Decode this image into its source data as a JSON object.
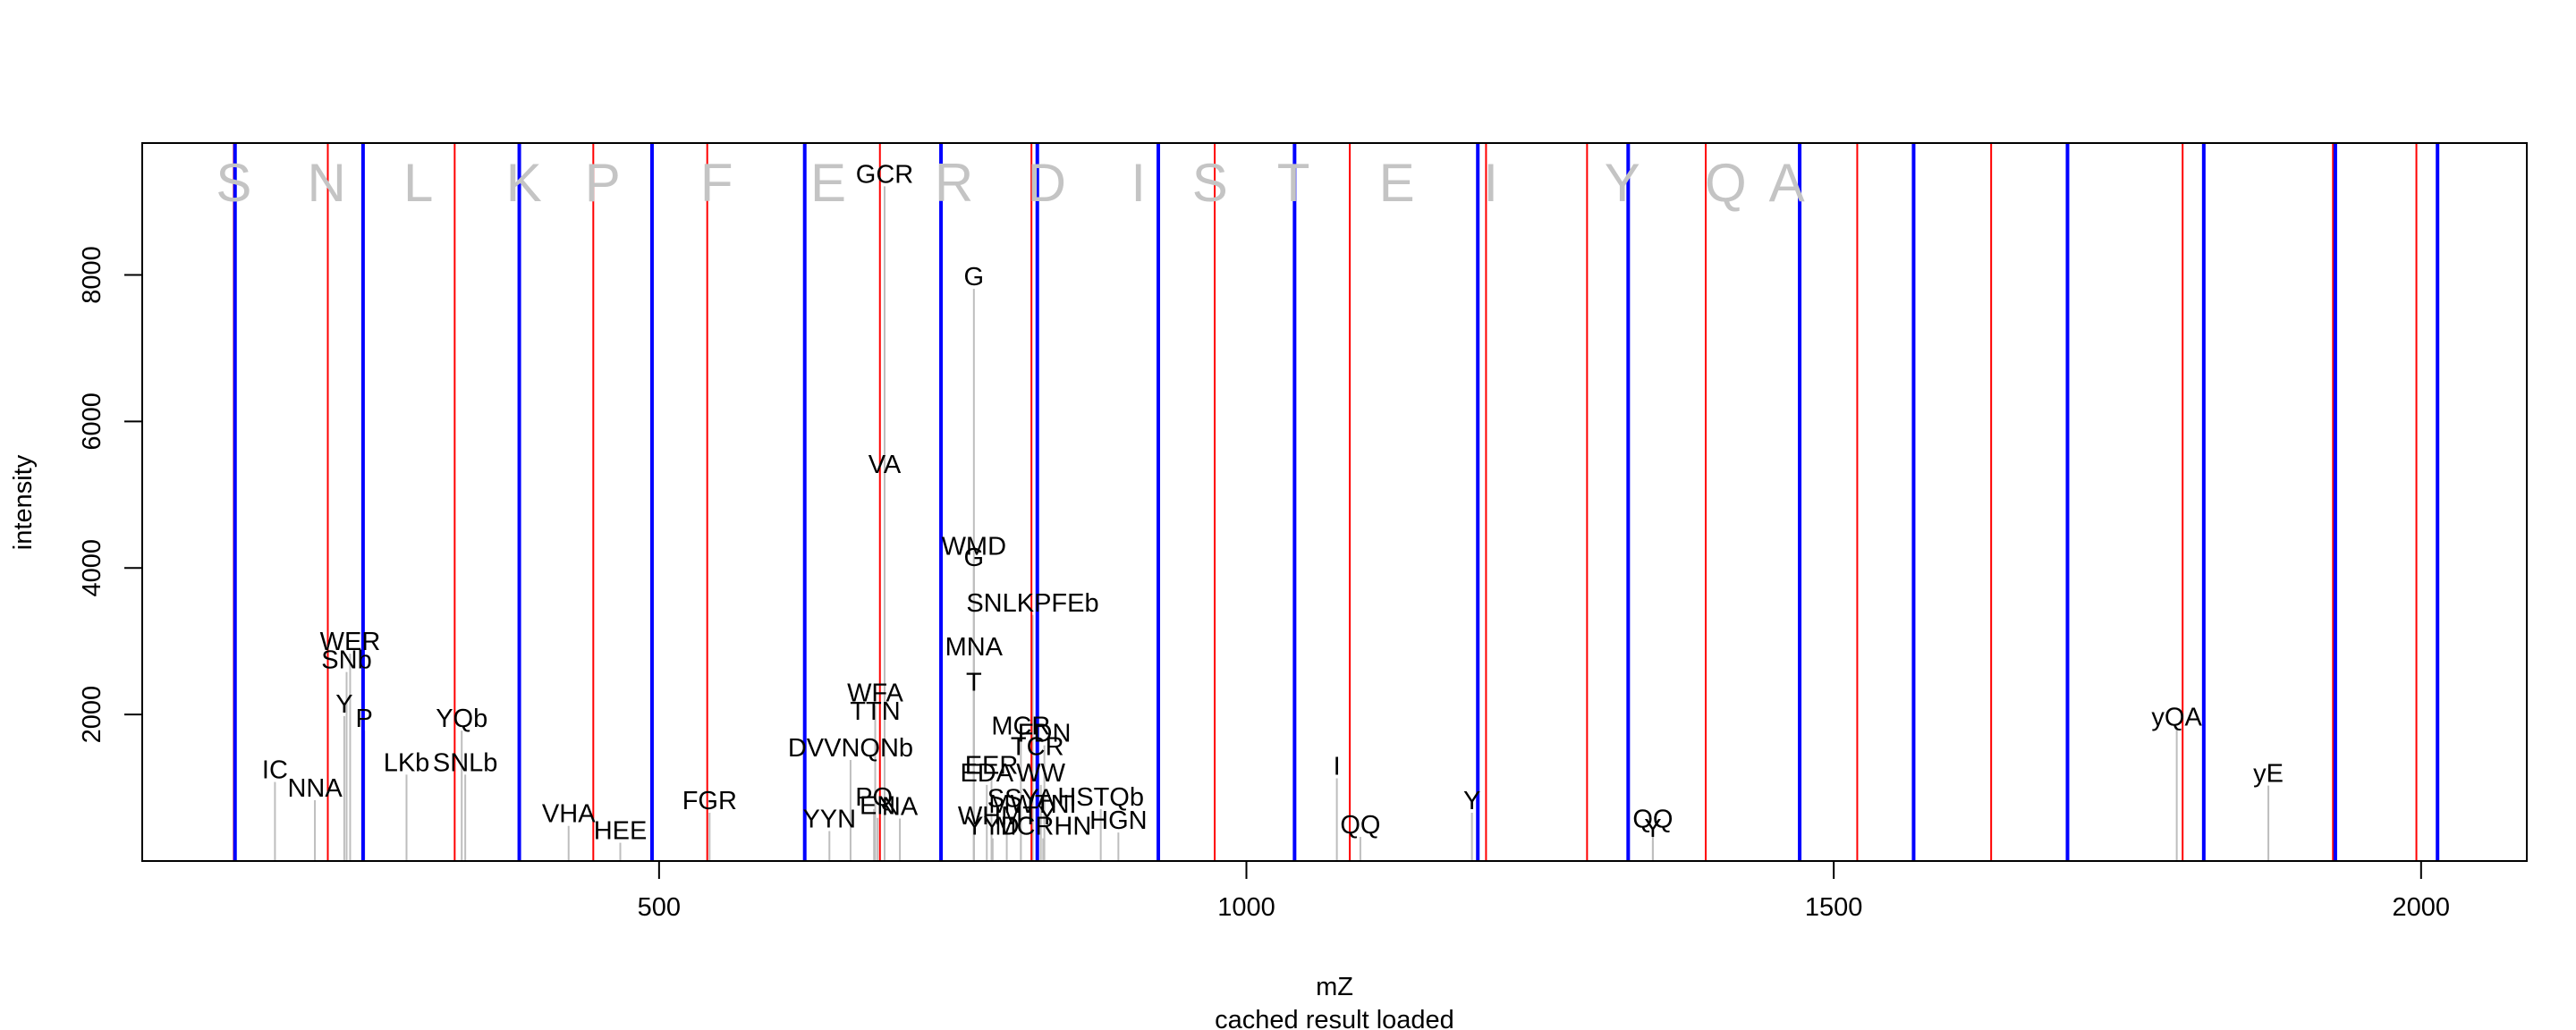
{
  "chart_data": {
    "type": "bar",
    "title": "",
    "xlabel": "mZ",
    "ylabel": "intensity",
    "subtitle": "cached result loaded",
    "xlim": [
      60,
      2090
    ],
    "ylim": [
      0,
      9800
    ],
    "xticks": [
      500,
      1000,
      1500,
      2000
    ],
    "yticks": [
      2000,
      4000,
      6000,
      8000
    ],
    "colors": {
      "peak": "#bebebe",
      "red_line": "#ff0000",
      "blue_line": "#0000ff",
      "residue": "#c4c4c4"
    },
    "peptide_residues": [
      {
        "letter": "S",
        "x": 138
      },
      {
        "letter": "N",
        "x": 217
      },
      {
        "letter": "L",
        "x": 295
      },
      {
        "letter": "K",
        "x": 385
      },
      {
        "letter": "P",
        "x": 452
      },
      {
        "letter": "F",
        "x": 549
      },
      {
        "letter": "E",
        "x": 644
      },
      {
        "letter": "R",
        "x": 751
      },
      {
        "letter": "D",
        "x": 830
      },
      {
        "letter": "I",
        "x": 908
      },
      {
        "letter": "S",
        "x": 969
      },
      {
        "letter": "T",
        "x": 1040
      },
      {
        "letter": "E",
        "x": 1128
      },
      {
        "letter": "I",
        "x": 1208
      },
      {
        "letter": "Y",
        "x": 1320
      },
      {
        "letter": "Q",
        "x": 1408
      },
      {
        "letter": "A",
        "x": 1460
      }
    ],
    "red_lines": [
      138,
      218,
      326,
      444,
      541,
      688,
      817,
      973,
      1088,
      1204,
      1290,
      1391,
      1520,
      1634,
      1797,
      1925,
      1996
    ],
    "blue_lines": [
      139,
      248,
      381,
      494,
      624,
      740,
      822,
      925,
      1041,
      1197,
      1325,
      1471,
      1568,
      1699,
      1815,
      1927,
      2014
    ],
    "peaks": [
      {
        "x": 173,
        "y": 1250,
        "label": "IC"
      },
      {
        "x": 207,
        "y": 1000,
        "label": "NNA"
      },
      {
        "x": 237,
        "y": 3000,
        "label": "WER"
      },
      {
        "x": 234,
        "y": 2750,
        "label": "SNb"
      },
      {
        "x": 232,
        "y": 2150,
        "label": "Y"
      },
      {
        "x": 249,
        "y": 1950,
        "label": "P"
      },
      {
        "x": 285,
        "y": 1350,
        "label": "LKb"
      },
      {
        "x": 335,
        "y": 1350,
        "label": "SNLb"
      },
      {
        "x": 332,
        "y": 1950,
        "label": "YQb"
      },
      {
        "x": 423,
        "y": 650,
        "label": "VHA"
      },
      {
        "x": 467,
        "y": 420,
        "label": "HEE"
      },
      {
        "x": 543,
        "y": 830,
        "label": "FGR"
      },
      {
        "x": 692,
        "y": 9380,
        "label": "GCR"
      },
      {
        "x": 692,
        "y": 5420,
        "label": "VA"
      },
      {
        "x": 684,
        "y": 2300,
        "label": "WFA"
      },
      {
        "x": 684,
        "y": 2050,
        "label": "TTN"
      },
      {
        "x": 663,
        "y": 1550,
        "label": "DVVNQNb"
      },
      {
        "x": 645,
        "y": 580,
        "label": "YYN"
      },
      {
        "x": 683,
        "y": 880,
        "label": "PQ"
      },
      {
        "x": 686,
        "y": 760,
        "label": "EN"
      },
      {
        "x": 705,
        "y": 750,
        "label": "NA"
      },
      {
        "x": 768,
        "y": 7980,
        "label": "G"
      },
      {
        "x": 768,
        "y": 4300,
        "label": "WMD"
      },
      {
        "x": 768,
        "y": 4150,
        "label": "G"
      },
      {
        "x": 818,
        "y": 3530,
        "label": "SNLKPFEb"
      },
      {
        "x": 768,
        "y": 2930,
        "label": "MNA"
      },
      {
        "x": 768,
        "y": 2450,
        "label": "T"
      },
      {
        "x": 808,
        "y": 1850,
        "label": "MCR"
      },
      {
        "x": 828,
        "y": 1750,
        "label": "FDN"
      },
      {
        "x": 822,
        "y": 1570,
        "label": "TCR"
      },
      {
        "x": 783,
        "y": 1310,
        "label": "EER"
      },
      {
        "x": 779,
        "y": 1210,
        "label": "EDA"
      },
      {
        "x": 825,
        "y": 1210,
        "label": "WW"
      },
      {
        "x": 808,
        "y": 860,
        "label": "SSYA"
      },
      {
        "x": 818,
        "y": 780,
        "label": "MWTNI"
      },
      {
        "x": 796,
        "y": 620,
        "label": "WHMTY"
      },
      {
        "x": 784,
        "y": 480,
        "label": "YYD"
      },
      {
        "x": 827,
        "y": 480,
        "label": "MCRHN"
      },
      {
        "x": 876,
        "y": 880,
        "label": "HSTQb"
      },
      {
        "x": 891,
        "y": 560,
        "label": "HGN"
      },
      {
        "x": 1077,
        "y": 1300,
        "label": "I"
      },
      {
        "x": 1097,
        "y": 500,
        "label": "QQ"
      },
      {
        "x": 1192,
        "y": 830,
        "label": "Y"
      },
      {
        "x": 1346,
        "y": 580,
        "label": "QQ"
      },
      {
        "x": 1346,
        "y": 450,
        "label": "Y"
      },
      {
        "x": 1792,
        "y": 1970,
        "label": "yQA"
      },
      {
        "x": 1870,
        "y": 1200,
        "label": "yE"
      }
    ]
  }
}
